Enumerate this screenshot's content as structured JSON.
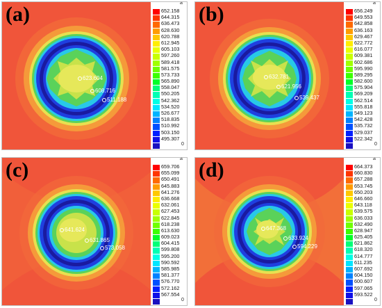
{
  "colors": {
    "background_red": "#f0553a",
    "orange": "#f5913a",
    "yellow": "#e6e85a",
    "ring_blue": "#1f3fe0",
    "ring_navy": "#1a1aa0",
    "cyan": "#28c8e8",
    "green": "#5ad25a"
  },
  "palette": [
    "#ff0000",
    "#ff3500",
    "#ff6a00",
    "#ff9c00",
    "#ffc800",
    "#ffed00",
    "#eaff00",
    "#c8ff00",
    "#a0ff00",
    "#70ff00",
    "#3cff00",
    "#00ff28",
    "#00ff78",
    "#00ffb4",
    "#00ffe6",
    "#00e6ff",
    "#00b4ff",
    "#0082ff",
    "#0050ff",
    "#0020ff",
    "#1010e8",
    "#1a10c0"
  ],
  "panels": [
    {
      "label": "(a)",
      "marker_top": "a",
      "marker_bottom": "0",
      "scale": [
        "652.158",
        "644.315",
        "636.473",
        "628.630",
        "620.788",
        "612.945",
        "605.103",
        "597.260",
        "589.418",
        "581.575",
        "573.733",
        "565.890",
        "558.047",
        "550.205",
        "542.362",
        "534.520",
        "526.677",
        "518.835",
        "510.992",
        "503.150",
        "495.307"
      ],
      "probes": [
        "623.604",
        "608.716",
        "511.188"
      ]
    },
    {
      "label": "(b)",
      "marker_top": "a",
      "marker_bottom": "0",
      "scale": [
        "656.249",
        "649.553",
        "642.858",
        "636.163",
        "629.467",
        "622.772",
        "616.077",
        "609.381",
        "602.686",
        "595.990",
        "589.295",
        "582.600",
        "575.904",
        "569.209",
        "562.514",
        "555.818",
        "549.123",
        "542.428",
        "535.732",
        "529.037",
        "522.342"
      ],
      "probes": [
        "632.781",
        "621.956",
        "539.437"
      ]
    },
    {
      "label": "(c)",
      "marker_top": "a",
      "marker_bottom": "0",
      "scale": [
        "659.706",
        "655.099",
        "650.491",
        "645.883",
        "641.276",
        "636.668",
        "632.061",
        "627.453",
        "622.845",
        "618.238",
        "613.630",
        "609.023",
        "604.415",
        "599.808",
        "595.200",
        "590.592",
        "585.985",
        "581.377",
        "576.770",
        "572.162",
        "567.554"
      ],
      "probes": [
        "641.624",
        "631.865",
        "573.058"
      ]
    },
    {
      "label": "(d)",
      "marker_top": "a",
      "marker_bottom": "0",
      "scale": [
        "664.373",
        "660.830",
        "657.288",
        "653.745",
        "650.203",
        "646.660",
        "643.118",
        "639.575",
        "636.033",
        "632.490",
        "628.947",
        "625.405",
        "621.862",
        "618.320",
        "614.777",
        "611.235",
        "607.692",
        "604.150",
        "600.607",
        "597.065",
        "593.522"
      ],
      "probes": [
        "647.368",
        "633.924",
        "594.229"
      ]
    }
  ]
}
